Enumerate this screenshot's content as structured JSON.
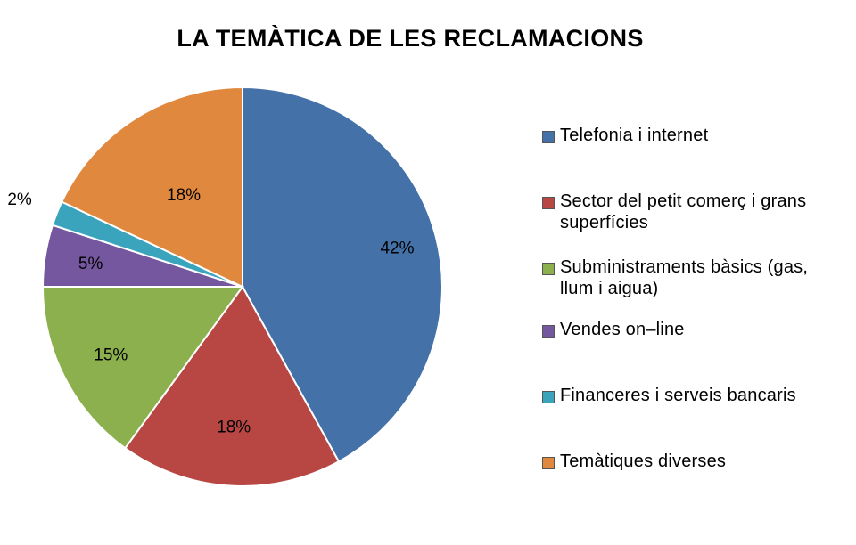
{
  "chart_data": {
    "type": "pie",
    "title": "LA TEMÀTICA DE LES RECLAMACIONS",
    "slices": [
      {
        "label": "Telefonia i internet",
        "value": 42,
        "value_label": "42%",
        "color": "#4472A8"
      },
      {
        "label": "Sector del petit comerç i grans superfícies",
        "value": 18,
        "value_label": "18%",
        "color": "#B84744"
      },
      {
        "label": "Subministraments bàsics (gas, llum i aigua)",
        "value": 15,
        "value_label": "15%",
        "color": "#8CB04D"
      },
      {
        "label": "Vendes on–line",
        "value": 5,
        "value_label": "5%",
        "color": "#7557A0"
      },
      {
        "label": "Financeres i serveis bancaris",
        "value": 2,
        "value_label": "2%",
        "color": "#3AA4BC"
      },
      {
        "label": "Temàtiques diverses",
        "value": 18,
        "value_label": "18%",
        "color": "#E0883D"
      }
    ],
    "legend_position": "right",
    "start_angle": "12 o'clock",
    "direction": "clockwise"
  }
}
